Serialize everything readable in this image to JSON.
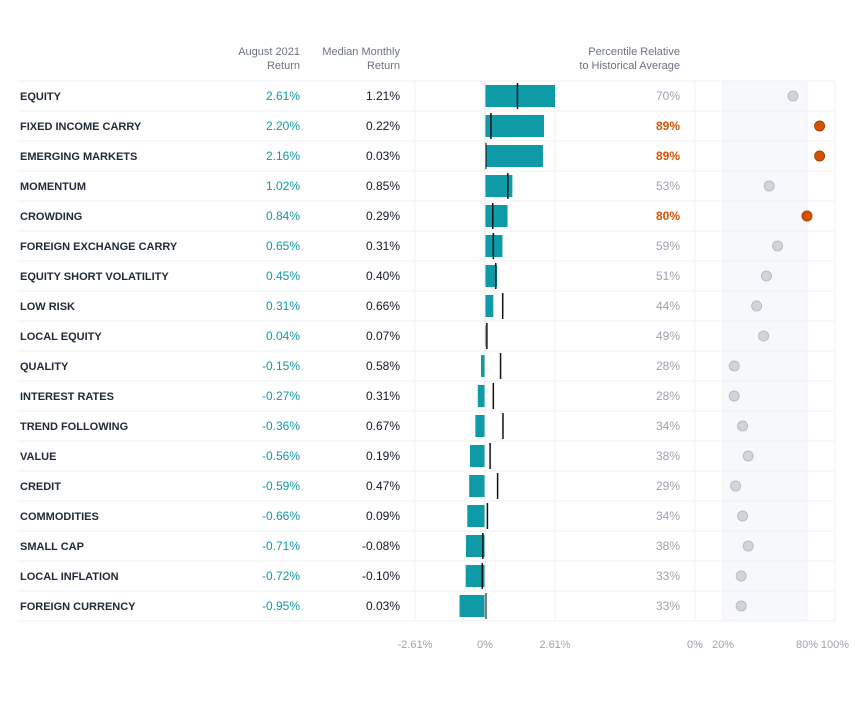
{
  "headers": {
    "aug_line1": "August 2021",
    "aug_line2": "Return",
    "median_line1": "Median Monthly",
    "median_line2": "Return",
    "pct_line1": "Percentile Relative",
    "pct_line2": "to Historical Average"
  },
  "colors": {
    "bar": "#0e9aa7",
    "positive_text": "#0e9aa7",
    "highlight": "#d35400",
    "neutral_dot": "#d1d5db",
    "label": "#1f2937",
    "muted": "#9ca3af"
  },
  "highlight_threshold": 80,
  "chart_data": {
    "type": "bar",
    "title": "",
    "orientation": "horizontal",
    "categories": [
      "EQUITY",
      "FIXED INCOME CARRY",
      "EMERGING MARKETS",
      "MOMENTUM",
      "CROWDING",
      "FOREIGN EXCHANGE CARRY",
      "EQUITY SHORT VOLATILITY",
      "LOW RISK",
      "LOCAL EQUITY",
      "QUALITY",
      "INTEREST RATES",
      "TREND FOLLOWING",
      "VALUE",
      "CREDIT",
      "COMMODITIES",
      "SMALL CAP",
      "LOCAL INFLATION",
      "FOREIGN CURRENCY"
    ],
    "series": [
      {
        "name": "August 2021 Return",
        "values": [
          2.61,
          2.2,
          2.16,
          1.02,
          0.84,
          0.65,
          0.45,
          0.31,
          0.04,
          -0.15,
          -0.27,
          -0.36,
          -0.56,
          -0.59,
          -0.66,
          -0.71,
          -0.72,
          -0.95
        ]
      },
      {
        "name": "Median Monthly Return",
        "values": [
          1.21,
          0.22,
          0.03,
          0.85,
          0.29,
          0.31,
          0.4,
          0.66,
          0.07,
          0.58,
          0.31,
          0.67,
          0.19,
          0.47,
          0.09,
          -0.08,
          -0.1,
          0.03
        ]
      },
      {
        "name": "Percentile Relative to Historical Average",
        "values": [
          70,
          89,
          89,
          53,
          80,
          59,
          51,
          44,
          49,
          28,
          28,
          34,
          38,
          29,
          34,
          38,
          33,
          33
        ]
      }
    ],
    "aug_labels": [
      "2.61%",
      "2.20%",
      "2.16%",
      "1.02%",
      "0.84%",
      "0.65%",
      "0.45%",
      "0.31%",
      "0.04%",
      "-0.15%",
      "-0.27%",
      "-0.36%",
      "-0.56%",
      "-0.59%",
      "-0.66%",
      "-0.71%",
      "-0.72%",
      "-0.95%"
    ],
    "median_labels": [
      "1.21%",
      "0.22%",
      "0.03%",
      "0.85%",
      "0.29%",
      "0.31%",
      "0.40%",
      "0.66%",
      "0.07%",
      "0.58%",
      "0.31%",
      "0.67%",
      "0.19%",
      "0.47%",
      "0.09%",
      "-0.08%",
      "-0.10%",
      "0.03%"
    ],
    "pct_labels": [
      "70%",
      "89%",
      "89%",
      "53%",
      "80%",
      "59%",
      "51%",
      "44%",
      "49%",
      "28%",
      "28%",
      "34%",
      "38%",
      "29%",
      "34%",
      "38%",
      "33%",
      "33%"
    ],
    "bar_xlim": [
      -2.61,
      2.61
    ],
    "bar_ticks": [
      "-2.61%",
      "0%",
      "2.61%"
    ],
    "bar_tick_values": [
      -2.61,
      0,
      2.61
    ],
    "dot_xlim": [
      0,
      100
    ],
    "dot_ticks": [
      "0%",
      "20%",
      "80%",
      "100%"
    ],
    "dot_tick_values": [
      0,
      20,
      80,
      100
    ],
    "dot_band": [
      20,
      80
    ]
  }
}
